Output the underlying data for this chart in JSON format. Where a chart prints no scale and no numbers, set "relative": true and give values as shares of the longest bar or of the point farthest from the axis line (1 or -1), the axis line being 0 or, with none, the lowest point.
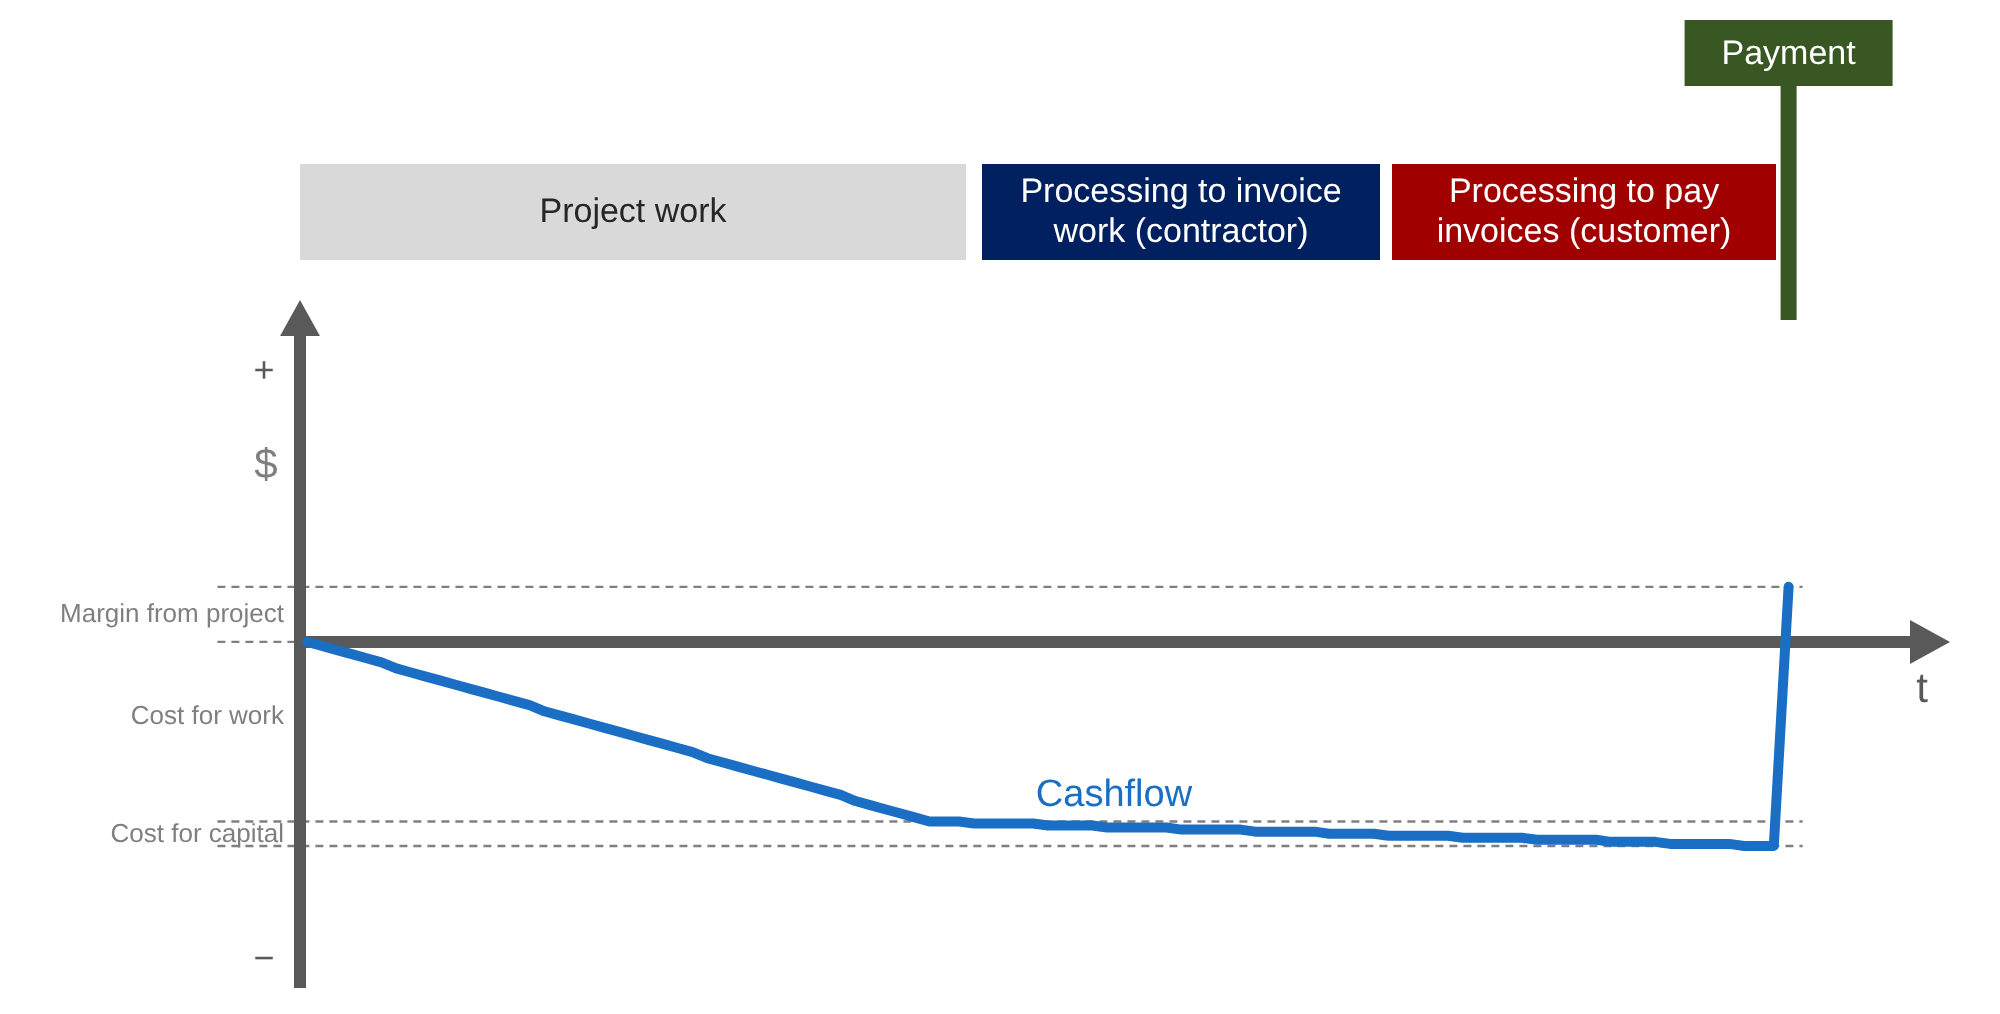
{
  "chart_data": {
    "type": "line",
    "relative": true,
    "xlabel": "t",
    "ylabel": "$",
    "categories": [
      null,
      null,
      null,
      null,
      null,
      null,
      null,
      null,
      null,
      null,
      null,
      null,
      null,
      null,
      null,
      null,
      null,
      null,
      null,
      null,
      null,
      null,
      null,
      null,
      null,
      null,
      null,
      null,
      null,
      null,
      null,
      null,
      null,
      null,
      null,
      null,
      null,
      null,
      null,
      null,
      null,
      null,
      null,
      null,
      null,
      null,
      null,
      null,
      null,
      null,
      null,
      null,
      null,
      null,
      null,
      null,
      null,
      null,
      null,
      null,
      null,
      null,
      null,
      null,
      null,
      null,
      null,
      null,
      null,
      null,
      null,
      null,
      null,
      null,
      null,
      null,
      null,
      null,
      null,
      null,
      null,
      null,
      null,
      null,
      null,
      null,
      null,
      null,
      null,
      null,
      null,
      null,
      null,
      null,
      null,
      null,
      null,
      null,
      null,
      null,
      null
    ],
    "series": [
      {
        "name": "Cashflow",
        "color": "#1a6ec3",
        "values": [
          0,
          -0.02,
          -0.04,
          -0.06,
          -0.08,
          -0.1,
          -0.13,
          -0.15,
          -0.17,
          -0.19,
          -0.21,
          -0.23,
          -0.25,
          -0.27,
          -0.29,
          -0.31,
          -0.34,
          -0.36,
          -0.38,
          -0.4,
          -0.42,
          -0.44,
          -0.46,
          -0.48,
          -0.5,
          -0.52,
          -0.54,
          -0.57,
          -0.59,
          -0.61,
          -0.63,
          -0.65,
          -0.67,
          -0.69,
          -0.71,
          -0.73,
          -0.75,
          -0.78,
          -0.8,
          -0.82,
          -0.84,
          -0.86,
          -0.88,
          -0.88,
          -0.88,
          -0.89,
          -0.89,
          -0.89,
          -0.89,
          -0.89,
          -0.9,
          -0.9,
          -0.9,
          -0.9,
          -0.91,
          -0.91,
          -0.91,
          -0.91,
          -0.91,
          -0.92,
          -0.92,
          -0.92,
          -0.92,
          -0.92,
          -0.93,
          -0.93,
          -0.93,
          -0.93,
          -0.93,
          -0.94,
          -0.94,
          -0.94,
          -0.94,
          -0.95,
          -0.95,
          -0.95,
          -0.95,
          -0.95,
          -0.96,
          -0.96,
          -0.96,
          -0.96,
          -0.96,
          -0.97,
          -0.97,
          -0.97,
          -0.97,
          -0.97,
          -0.98,
          -0.98,
          -0.98,
          -0.98,
          -0.99,
          -0.99,
          -0.99,
          -0.99,
          -0.99,
          -1,
          -1,
          -1,
          0.27
        ]
      }
    ],
    "ref_lines": [
      {
        "axis": "y",
        "value": 0.27,
        "line_style": "dashed",
        "color": "#808080"
      },
      {
        "axis": "y",
        "value": 0,
        "line_style": "dashed",
        "color": "#808080"
      },
      {
        "axis": "y",
        "value": -0.88,
        "line_style": "dashed",
        "color": "#808080"
      },
      {
        "axis": "y",
        "value": -1,
        "line_style": "dashed",
        "color": "#808080"
      }
    ],
    "annotations": [
      "+",
      "−",
      "Margin from project",
      "Cost for work",
      "Cost for capital",
      "Project work",
      "Processing to invoice work (contractor)",
      "Processing to pay invoices (customer)",
      "Payment"
    ]
  }
}
